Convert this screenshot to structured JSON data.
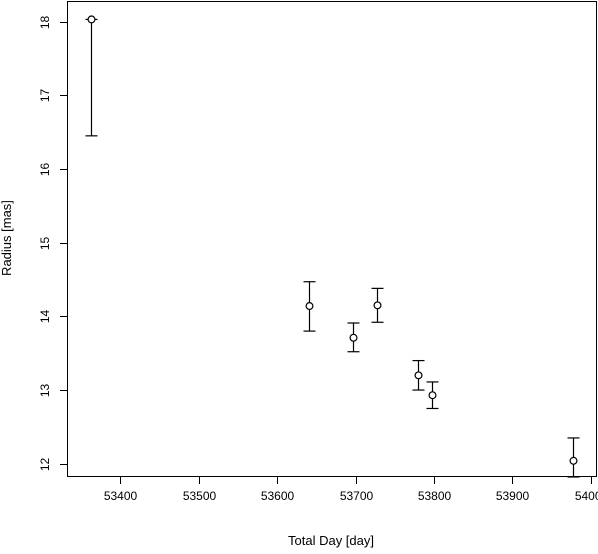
{
  "chart_data": {
    "type": "scatter",
    "title": "",
    "xlabel": "Total Day [day]",
    "ylabel": "Radius [mas]",
    "xlim": [
      53332,
      54008
    ],
    "ylim": [
      11.82,
      18.28
    ],
    "x_ticks": [
      53400,
      53500,
      53600,
      53700,
      53800,
      53900,
      54000
    ],
    "y_ticks": [
      12,
      13,
      14,
      15,
      16,
      17,
      18
    ],
    "x_tick_labels": [
      "53400",
      "53500",
      "53600",
      "53700",
      "53800",
      "53900",
      "54000"
    ],
    "y_tick_labels": [
      "12",
      "13",
      "14",
      "15",
      "16",
      "17",
      "18"
    ],
    "grid": false,
    "legend": "none",
    "marker": "open-circle",
    "error_bars": "vertical",
    "points": [
      {
        "x": 53363,
        "y": 18.03,
        "err_low": 16.45,
        "err_high": 18.03
      },
      {
        "x": 53641,
        "y": 14.14,
        "err_low": 13.8,
        "err_high": 14.47
      },
      {
        "x": 53697,
        "y": 13.71,
        "err_low": 13.52,
        "err_high": 13.91
      },
      {
        "x": 53728,
        "y": 14.15,
        "err_low": 13.92,
        "err_high": 14.38
      },
      {
        "x": 53780,
        "y": 13.2,
        "err_low": 13.0,
        "err_high": 13.4
      },
      {
        "x": 53797,
        "y": 12.93,
        "err_low": 12.75,
        "err_high": 13.11
      },
      {
        "x": 53978,
        "y": 12.04,
        "err_low": 11.82,
        "err_high": 12.35
      }
    ]
  }
}
